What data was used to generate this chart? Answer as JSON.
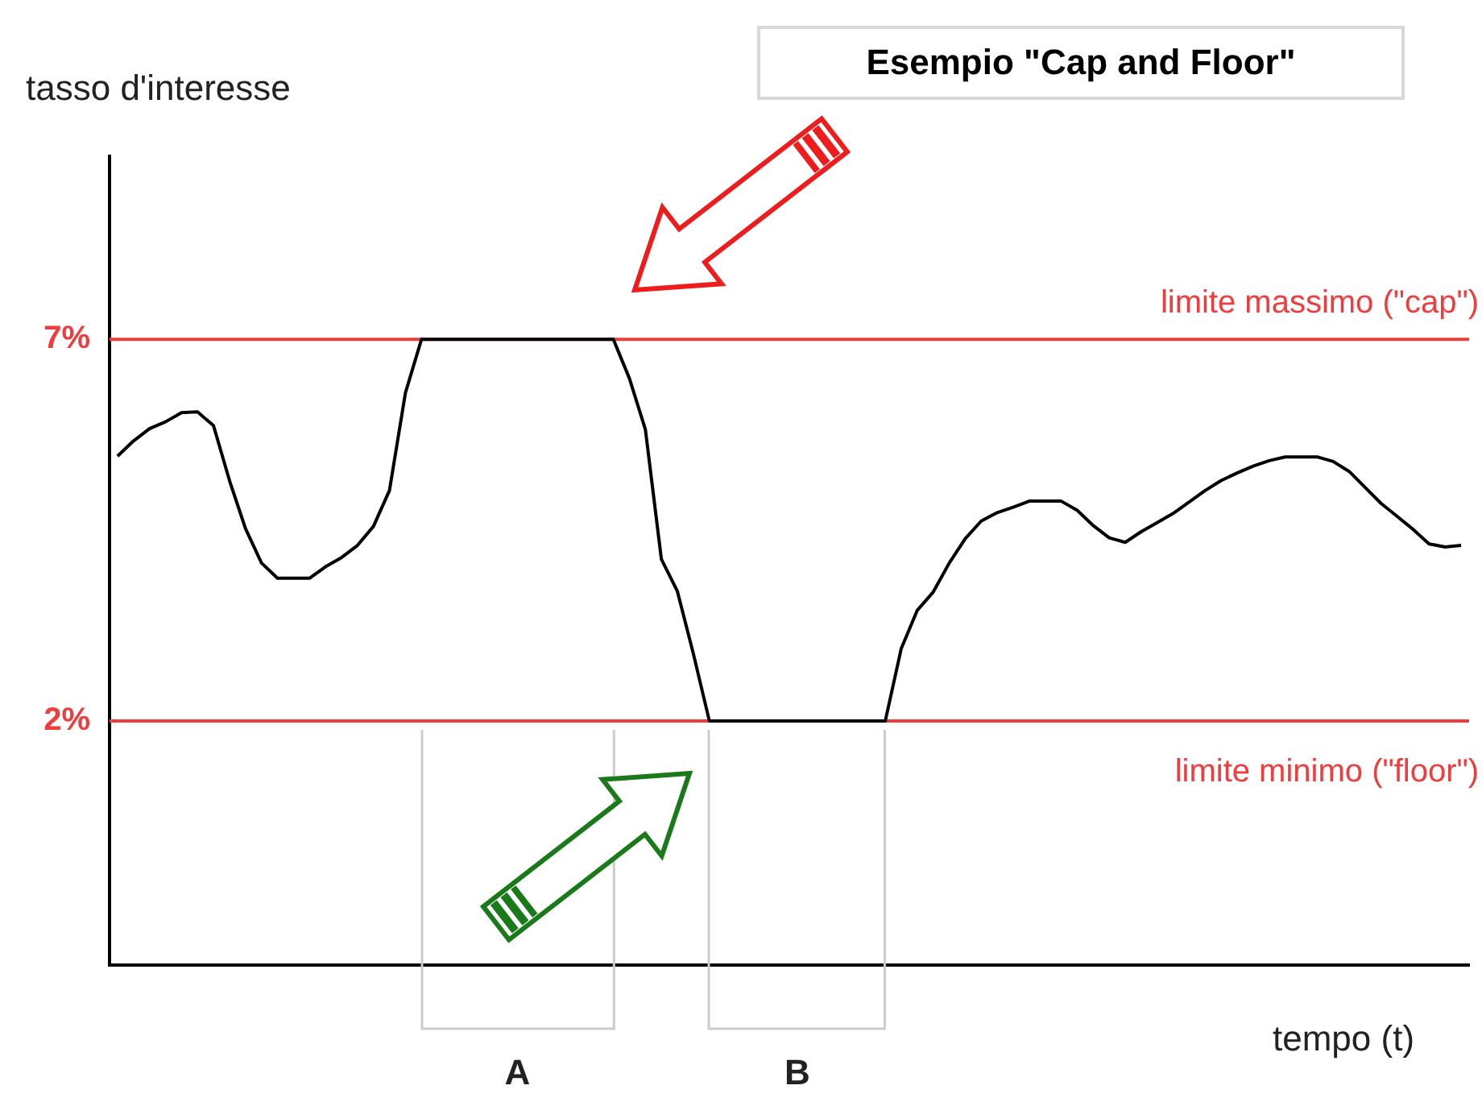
{
  "chart_data": {
    "type": "line",
    "title": "Esempio \"Cap and Floor\"",
    "xlabel": "tempo (t)",
    "ylabel": "tasso d'interesse",
    "categories": [
      null,
      null,
      null,
      null,
      null,
      null,
      null,
      null,
      null,
      null,
      null,
      null,
      null,
      null,
      null,
      null,
      null,
      null,
      null,
      null,
      null,
      null,
      null,
      null,
      null,
      null,
      null,
      null,
      null,
      null,
      null,
      null,
      null,
      null,
      null,
      null,
      null,
      null,
      null,
      null,
      null,
      null,
      null,
      null,
      null,
      null,
      null,
      null,
      null,
      null,
      null,
      null,
      null,
      null,
      null,
      null,
      null,
      null,
      null,
      null,
      null,
      null,
      null,
      null,
      null,
      null,
      null,
      null,
      null,
      null,
      null,
      null,
      null,
      null,
      null,
      null,
      null,
      null,
      null,
      null,
      null,
      null,
      null,
      null,
      null
    ],
    "series": [
      {
        "color": "#000000",
        "values": [
          5.47,
          5.67,
          5.83,
          5.92,
          6.04,
          6.05,
          5.87,
          5.15,
          4.52,
          4.07,
          3.87,
          3.87,
          3.87,
          4.02,
          4.14,
          4.3,
          4.55,
          5.02,
          6.3,
          7,
          7,
          7,
          7,
          7,
          7,
          7,
          7,
          7,
          7,
          7,
          7,
          7,
          6.49,
          5.82,
          4.12,
          3.7,
          2.88,
          2,
          2,
          2,
          2,
          2,
          2,
          2,
          2,
          2,
          2,
          2,
          2,
          2.95,
          3.45,
          3.69,
          4.07,
          4.39,
          4.62,
          4.73,
          4.8,
          4.88,
          4.88,
          4.88,
          4.76,
          4.56,
          4.4,
          4.34,
          4.48,
          4.6,
          4.72,
          4.87,
          5.02,
          5.15,
          5.25,
          5.34,
          5.41,
          5.46,
          5.46,
          5.46,
          5.4,
          5.27,
          5.06,
          4.85,
          4.68,
          4.51,
          4.32,
          4.28,
          4.3
        ]
      }
    ],
    "ylim": [
      -1.2,
      9.4
    ],
    "yticks": [
      {
        "value": 7,
        "label": "7%"
      },
      {
        "value": 2,
        "label": "2%"
      }
    ],
    "grid": false,
    "legend": false,
    "marker": "none",
    "line_style": "solid",
    "ref_lines": [
      {
        "axis": "y",
        "value": 7,
        "label": "limite massimo (\"cap\")",
        "color": "#f03c3c"
      },
      {
        "axis": "y",
        "value": 2,
        "label": "limite minimo (\"floor\")",
        "color": "#f03c3c"
      }
    ],
    "annotations": [
      "A",
      "B"
    ]
  }
}
